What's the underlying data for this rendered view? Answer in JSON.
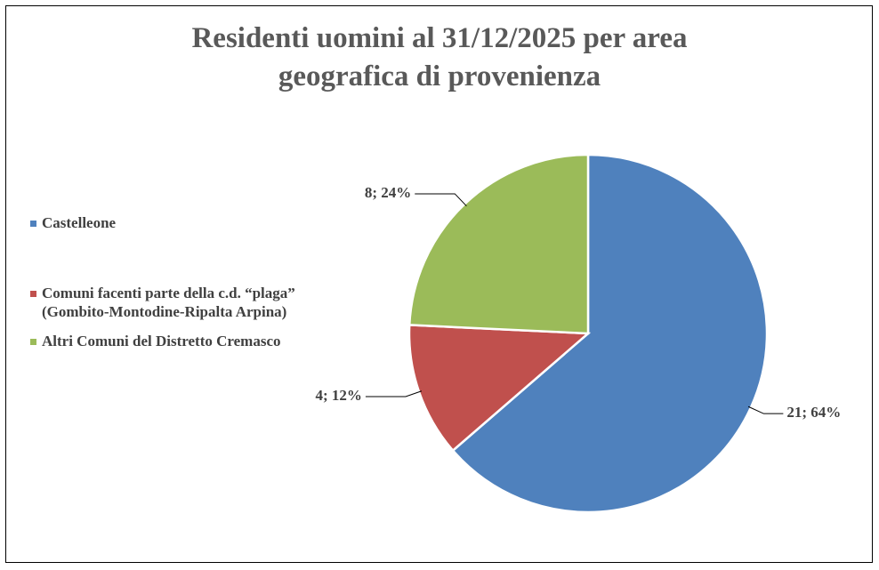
{
  "chart_data": {
    "type": "pie",
    "title": "Residenti uomini al 31/12/2025 per area geografica di provenienza",
    "categories": [
      "Castelleone",
      "Comuni facenti parte della c.d. “plaga” (Gombito-Montodine-Ripalta Arpina)",
      "Altri Comuni del Distretto Cremasco"
    ],
    "values": [
      21,
      4,
      8
    ],
    "value_labels": [
      "21; 64%",
      "4; 12%",
      "8; 24%"
    ],
    "colors": [
      "#4f81bd",
      "#c0504d",
      "#9bbb59"
    ],
    "legend": "left"
  }
}
